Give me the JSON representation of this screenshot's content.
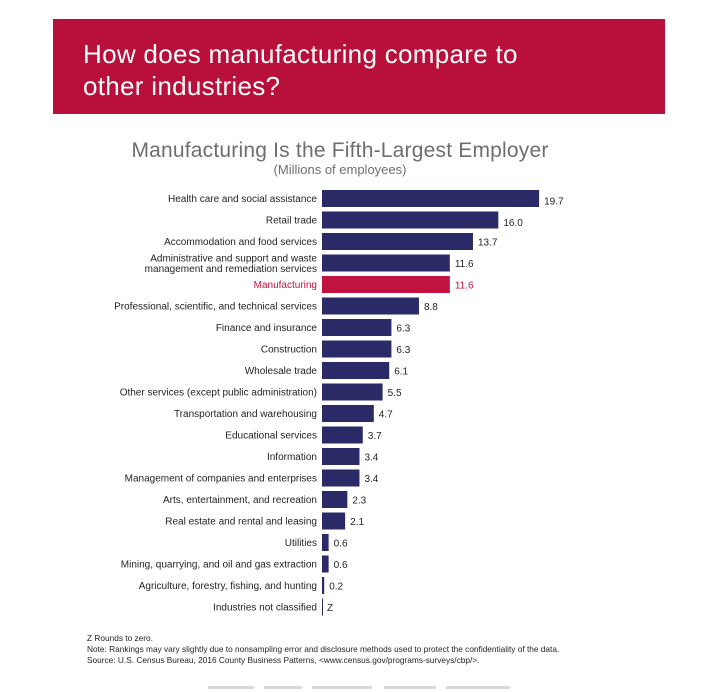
{
  "banner": {
    "title": "How does manufacturing compare to other industries?"
  },
  "colors": {
    "banner": "#b8103a",
    "bar": "#2a2a66",
    "highlight": "#c0133f",
    "text": "#231f20",
    "title": "#6d6e71"
  },
  "chart_data": {
    "type": "bar",
    "orientation": "horizontal",
    "title": "Manufacturing Is the Fifth-Largest Employer",
    "subtitle": "(Millions of employees)",
    "xlabel": "",
    "ylabel": "",
    "xlim": [
      0,
      20
    ],
    "grid": false,
    "highlight": "Manufacturing",
    "categories": [
      [
        "Health care and social assistance"
      ],
      [
        "Retail trade"
      ],
      [
        "Accommodation and food services"
      ],
      [
        "Administrative and support and waste",
        "management and remediation services"
      ],
      [
        "Manufacturing"
      ],
      [
        "Professional, scientific, and technical services"
      ],
      [
        "Finance and insurance"
      ],
      [
        "Construction"
      ],
      [
        "Wholesale trade"
      ],
      [
        "Other services (except public administration)"
      ],
      [
        "Transportation and warehousing"
      ],
      [
        "Educational services"
      ],
      [
        "Information"
      ],
      [
        "Management of companies and enterprises"
      ],
      [
        "Arts, entertainment, and recreation"
      ],
      [
        "Real estate and rental and leasing"
      ],
      [
        "Utilities"
      ],
      [
        "Mining, quarrying, and oil and gas extraction"
      ],
      [
        "Agriculture, forestry, fishing, and hunting"
      ],
      [
        "Industries not classified"
      ]
    ],
    "values": [
      19.7,
      16.0,
      13.7,
      11.6,
      11.6,
      8.8,
      6.3,
      6.3,
      6.1,
      5.5,
      4.7,
      3.7,
      3.4,
      3.4,
      2.3,
      2.1,
      0.6,
      0.6,
      0.2,
      0
    ],
    "value_labels": [
      "19.7",
      "16.0",
      "13.7",
      "11.6",
      "11.6",
      "8.8",
      "6.3",
      "6.3",
      "6.1",
      "5.5",
      "4.7",
      "3.7",
      "3.4",
      "3.4",
      "2.3",
      "2.1",
      "0.6",
      "0.6",
      "0.2",
      "Z"
    ]
  },
  "footer": {
    "note1": "Z Rounds to zero.",
    "note2": "Note: Rankings may vary slightly due to nonsampling error and disclosure methods used to protect the confidentiality of the data.",
    "source": "Source: U.S. Census Bureau, 2016 County Business Patterns, <www.census.gov/programs-surveys/cbp/>."
  }
}
